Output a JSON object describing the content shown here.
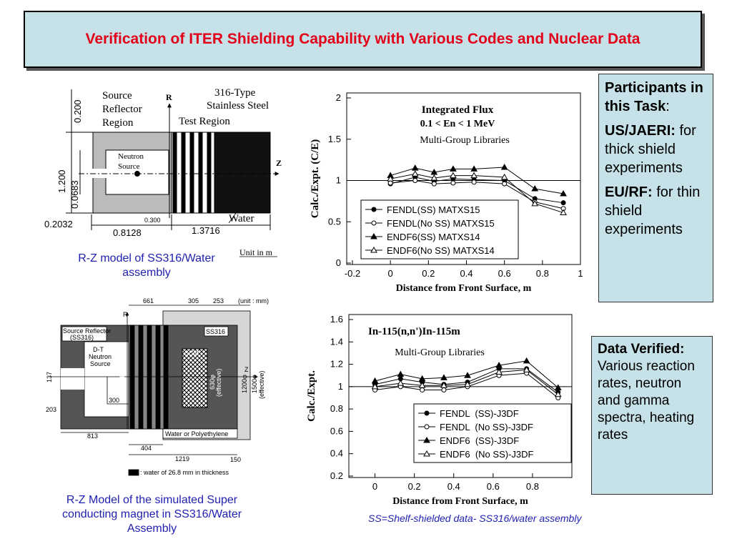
{
  "title": "Verification of ITER Shielding Capability with Various Codes and Nuclear Data",
  "participants": {
    "heading": "Participants in this Task",
    "colon": ":",
    "items": [
      {
        "name": "US/JAERI:",
        "text": "for thick shield experiments"
      },
      {
        "name": "EU/RF:",
        "text": "for thin shield experiments"
      }
    ]
  },
  "data_verified": {
    "heading": "Data Verified:",
    "text": "Various reaction rates, neutron and gamma spectra, heating rates"
  },
  "diagram1": {
    "caption": "R-Z model of SS316/Water assembly",
    "labels": [
      "Source",
      "Reflector",
      "Region",
      "316-Type",
      "Stainless Steel",
      "Test Region",
      "R",
      "Z",
      "Neutron",
      "Source",
      "Water",
      "Unit in m",
      "0.200",
      "1.200",
      "0.0683",
      "0.2032",
      "0.8128",
      "1.3716",
      "0.300"
    ]
  },
  "diagram2": {
    "caption": "R-Z Model of the simulated Super conducting magnet in SS316/Water Assembly",
    "labels": [
      "661",
      "305",
      "253",
      "(unit : mm)",
      "R",
      "Source Reflector",
      "(SS316)",
      "D-T",
      "Neutron",
      "Source",
      "SS316",
      "SCM",
      "800φ",
      "630φ",
      "(effective)",
      "Z",
      "1200φ",
      "1500φ",
      "(effective)",
      "137",
      "300",
      "203",
      "813",
      "404",
      "1219",
      "150",
      "Water or Polyethylene",
      ": water of 26.8 mm in thickness"
    ]
  },
  "footnote": "SS=Shelf-shielded data- SS316/water assembly",
  "chart_data": [
    {
      "type": "line",
      "title": "Integrated  Flux",
      "subtitle": [
        "0.1  <  En  <  1  MeV",
        "Multi-Group Libraries"
      ],
      "xlabel": "Distance  from  Front  Surface,  m",
      "ylabel": "Calc./Expt.   (C/E)",
      "xlim": [
        -0.2,
        1
      ],
      "xticks": [
        -0.2,
        0,
        0.2,
        0.4,
        0.6,
        0.8,
        1
      ],
      "ylim": [
        0,
        2
      ],
      "yticks": [
        0,
        0.5,
        1,
        1.5,
        2
      ],
      "reference_line": 1,
      "legend": "lower left",
      "x": [
        0,
        0.13,
        0.23,
        0.33,
        0.44,
        0.6,
        0.76,
        0.91
      ],
      "series": [
        {
          "name": "FENDL(SS) MATXS15",
          "color": "#000000",
          "marker": "circle",
          "filled": true,
          "values": [
            0.96,
            1.04,
            0.99,
            1.02,
            1.01,
            1.0,
            0.78,
            0.73
          ]
        },
        {
          "name": "FENDL(No SS) MATXS15",
          "color": "#000000",
          "marker": "circle",
          "filled": false,
          "values": [
            0.97,
            1.0,
            0.96,
            0.97,
            0.98,
            0.96,
            0.74,
            0.66
          ]
        },
        {
          "name": "ENDF6(SS) MATXS14",
          "color": "#000000",
          "marker": "triangle",
          "filled": true,
          "values": [
            1.06,
            1.15,
            1.1,
            1.14,
            1.14,
            1.16,
            0.9,
            0.84
          ]
        },
        {
          "name": "ENDF6(No SS) MATXS14",
          "color": "#000000",
          "marker": "triangle",
          "filled": false,
          "values": [
            1.02,
            1.08,
            1.03,
            1.06,
            1.06,
            1.04,
            0.72,
            0.61
          ]
        }
      ]
    },
    {
      "type": "line",
      "title": "In-115(n,n')In-115m",
      "subtitle": [
        "Multi-Group Libraries"
      ],
      "xlabel": "Distance from Front Surface, m",
      "ylabel": "Calc./Expt.",
      "xlim": [
        -0.1,
        1.0
      ],
      "xticks": [
        0,
        0.2,
        0.4,
        0.6,
        0.8
      ],
      "ylim": [
        0.2,
        1.6
      ],
      "yticks": [
        0.2,
        0.4,
        0.6,
        0.8,
        1,
        1.2,
        1.4,
        1.6
      ],
      "reference_line": 1,
      "legend": "lower center",
      "x": [
        0,
        0.13,
        0.24,
        0.35,
        0.47,
        0.63,
        0.77,
        0.93
      ],
      "series": [
        {
          "name": "FENDL  (SS)-J3DF",
          "color": "#000000",
          "marker": "circle",
          "filled": true,
          "values": [
            1.02,
            1.07,
            1.04,
            1.02,
            1.04,
            1.16,
            1.16,
            0.95
          ]
        },
        {
          "name": "FENDL  (No SS)-J3DF",
          "color": "#000000",
          "marker": "circle",
          "filled": false,
          "values": [
            0.97,
            1.0,
            0.97,
            0.97,
            1.0,
            1.1,
            1.12,
            0.9
          ]
        },
        {
          "name": "ENDF6  (SS)-J3DF",
          "color": "#000000",
          "marker": "triangle",
          "filled": true,
          "values": [
            1.05,
            1.11,
            1.07,
            1.08,
            1.1,
            1.19,
            1.23,
            0.99
          ]
        },
        {
          "name": "ENDF6  (No SS)-J3DF",
          "color": "#000000",
          "marker": "triangle",
          "filled": false,
          "values": [
            1.0,
            1.03,
            1.01,
            1.01,
            1.02,
            1.13,
            1.15,
            0.93
          ]
        }
      ]
    }
  ]
}
